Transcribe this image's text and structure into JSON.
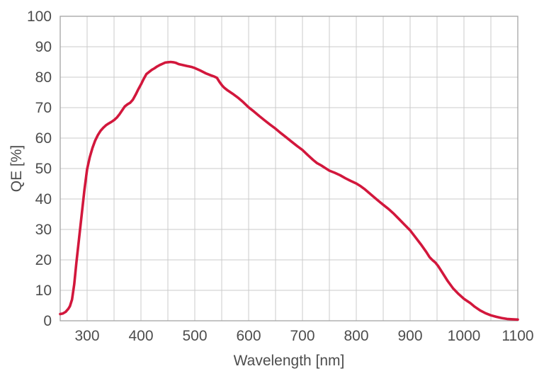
{
  "chart_data": {
    "type": "line",
    "title": "",
    "xlabel": "Wavelength [nm]",
    "ylabel": "QE [%]",
    "xlim": [
      250,
      1100
    ],
    "ylim": [
      0,
      100
    ],
    "x_ticks": [
      300,
      400,
      500,
      600,
      700,
      800,
      900,
      1000,
      1100
    ],
    "x_grid_step": 50,
    "y_ticks": [
      0,
      10,
      20,
      30,
      40,
      50,
      60,
      70,
      80,
      90,
      100
    ],
    "grid": true,
    "legend": "none",
    "colors": {
      "curve": "#d2173c",
      "grid": "#cbcbcb",
      "frame": "#a3a3a3",
      "text": "#4d4d4d",
      "background": "#ffffff"
    },
    "series": [
      {
        "name": "QE",
        "color": "#d2173c",
        "points": [
          [
            250,
            2.2
          ],
          [
            255,
            2.4
          ],
          [
            260,
            2.9
          ],
          [
            265,
            3.9
          ],
          [
            268,
            4.8
          ],
          [
            272,
            7.0
          ],
          [
            276,
            12.0
          ],
          [
            280,
            19.0
          ],
          [
            285,
            27.0
          ],
          [
            290,
            35.0
          ],
          [
            295,
            43.0
          ],
          [
            300,
            49.8
          ],
          [
            305,
            53.8
          ],
          [
            310,
            56.8
          ],
          [
            315,
            59.2
          ],
          [
            320,
            61.0
          ],
          [
            325,
            62.4
          ],
          [
            330,
            63.4
          ],
          [
            335,
            64.2
          ],
          [
            340,
            64.8
          ],
          [
            345,
            65.3
          ],
          [
            350,
            65.9
          ],
          [
            355,
            66.7
          ],
          [
            360,
            67.8
          ],
          [
            365,
            69.1
          ],
          [
            370,
            70.4
          ],
          [
            375,
            71.1
          ],
          [
            380,
            71.6
          ],
          [
            385,
            72.6
          ],
          [
            390,
            74.2
          ],
          [
            395,
            76.0
          ],
          [
            400,
            77.6
          ],
          [
            405,
            79.4
          ],
          [
            410,
            81.0
          ],
          [
            415,
            81.7
          ],
          [
            420,
            82.4
          ],
          [
            425,
            82.9
          ],
          [
            430,
            83.5
          ],
          [
            435,
            84.0
          ],
          [
            440,
            84.4
          ],
          [
            445,
            84.8
          ],
          [
            450,
            84.9
          ],
          [
            455,
            85.0
          ],
          [
            460,
            84.9
          ],
          [
            465,
            84.7
          ],
          [
            470,
            84.3
          ],
          [
            475,
            84.1
          ],
          [
            480,
            83.9
          ],
          [
            485,
            83.7
          ],
          [
            490,
            83.5
          ],
          [
            495,
            83.3
          ],
          [
            500,
            83.0
          ],
          [
            510,
            82.2
          ],
          [
            520,
            81.3
          ],
          [
            530,
            80.6
          ],
          [
            536,
            80.2
          ],
          [
            541,
            79.8
          ],
          [
            546,
            78.4
          ],
          [
            551,
            77.2
          ],
          [
            555,
            76.5
          ],
          [
            560,
            75.8
          ],
          [
            570,
            74.6
          ],
          [
            580,
            73.3
          ],
          [
            590,
            71.8
          ],
          [
            600,
            70.1
          ],
          [
            610,
            68.7
          ],
          [
            620,
            67.2
          ],
          [
            630,
            65.8
          ],
          [
            640,
            64.4
          ],
          [
            650,
            63.1
          ],
          [
            660,
            61.6
          ],
          [
            670,
            60.2
          ],
          [
            680,
            58.8
          ],
          [
            690,
            57.4
          ],
          [
            700,
            56.1
          ],
          [
            710,
            54.4
          ],
          [
            720,
            52.8
          ],
          [
            727,
            51.8
          ],
          [
            735,
            51.0
          ],
          [
            742,
            50.2
          ],
          [
            750,
            49.3
          ],
          [
            760,
            48.6
          ],
          [
            770,
            47.8
          ],
          [
            780,
            46.8
          ],
          [
            790,
            45.9
          ],
          [
            800,
            45.1
          ],
          [
            808,
            44.2
          ],
          [
            815,
            43.3
          ],
          [
            825,
            41.8
          ],
          [
            835,
            40.3
          ],
          [
            843,
            39.1
          ],
          [
            850,
            38.1
          ],
          [
            860,
            36.7
          ],
          [
            870,
            35.1
          ],
          [
            880,
            33.3
          ],
          [
            890,
            31.5
          ],
          [
            900,
            29.7
          ],
          [
            910,
            27.4
          ],
          [
            920,
            25.1
          ],
          [
            930,
            22.6
          ],
          [
            936,
            20.9
          ],
          [
            941,
            20.0
          ],
          [
            947,
            19.1
          ],
          [
            952,
            18.0
          ],
          [
            960,
            15.8
          ],
          [
            970,
            13.0
          ],
          [
            980,
            10.6
          ],
          [
            990,
            8.8
          ],
          [
            1000,
            7.2
          ],
          [
            1006,
            6.5
          ],
          [
            1012,
            5.8
          ],
          [
            1020,
            4.6
          ],
          [
            1030,
            3.4
          ],
          [
            1040,
            2.5
          ],
          [
            1050,
            1.8
          ],
          [
            1060,
            1.3
          ],
          [
            1070,
            0.9
          ],
          [
            1080,
            0.6
          ],
          [
            1090,
            0.5
          ],
          [
            1100,
            0.4
          ]
        ]
      }
    ]
  }
}
